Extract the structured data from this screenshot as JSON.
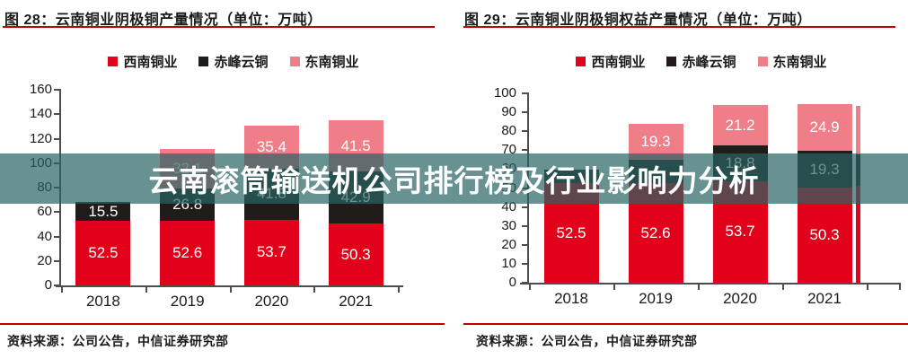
{
  "banner": {
    "text": "云南滚筒输送机公司排行榜及行业影响力分析",
    "background": "rgba(40,100,100,0.7)",
    "text_color": "#ffffff"
  },
  "colors": {
    "red": "#e2001a",
    "black": "#211c1a",
    "pink": "#ef7e88",
    "rule_red": "#c00000",
    "axis": "#4d4d4d"
  },
  "source_left": "资料来源：公司公告，中信证券研究部",
  "source_right": "资料来源：公司公告，中信证券研究部",
  "chart_data": [
    {
      "type": "bar",
      "stacked": true,
      "title": "图 28：云南铜业阴极铜产量情况（单位：万吨）",
      "categories": [
        "2018",
        "2019",
        "2020",
        "2021"
      ],
      "series": [
        {
          "name": "西南铜业",
          "color_key": "red",
          "values": [
            52.5,
            52.6,
            53.7,
            50.3
          ],
          "labels": [
            "52.5",
            "52.6",
            "53.7",
            "50.3"
          ]
        },
        {
          "name": "赤峰云铜",
          "color_key": "black",
          "values": [
            15.5,
            26.8,
            41.8,
            42.9
          ],
          "labels": [
            "15.5",
            "26.8",
            "41.8",
            "42.9"
          ]
        },
        {
          "name": "东南铜业",
          "color_key": "pink",
          "values": [
            0,
            32.1,
            35.4,
            41.5
          ],
          "labels": [
            "",
            "32.1",
            "35.4",
            "41.5"
          ]
        }
      ],
      "ylim": [
        0,
        160
      ],
      "ytick_step": 20,
      "grid": false,
      "legend_position": "top"
    },
    {
      "type": "bar",
      "stacked": true,
      "title": "图 29：云南铜业阴极铜权益产量情况（单位：万吨）",
      "categories": [
        "2018",
        "2019",
        "2020",
        "2021"
      ],
      "series": [
        {
          "name": "西南铜业",
          "color_key": "red",
          "values": [
            52.5,
            52.6,
            53.7,
            50.3
          ],
          "labels": [
            "52.5",
            "52.6",
            "53.7",
            "50.3"
          ]
        },
        {
          "name": "赤峰云铜",
          "color_key": "black",
          "values": [
            7.0,
            12.1,
            18.8,
            19.3
          ],
          "labels": [
            "",
            "",
            "18.8",
            "19.3"
          ]
        },
        {
          "name": "东南铜业",
          "color_key": "pink",
          "values": [
            0,
            19.3,
            21.2,
            24.9
          ],
          "labels": [
            "",
            "19.3",
            "21.2",
            "24.9"
          ]
        }
      ],
      "ylim": [
        0,
        100
      ],
      "ytick_step": 10,
      "grid": false,
      "legend_position": "top"
    }
  ]
}
